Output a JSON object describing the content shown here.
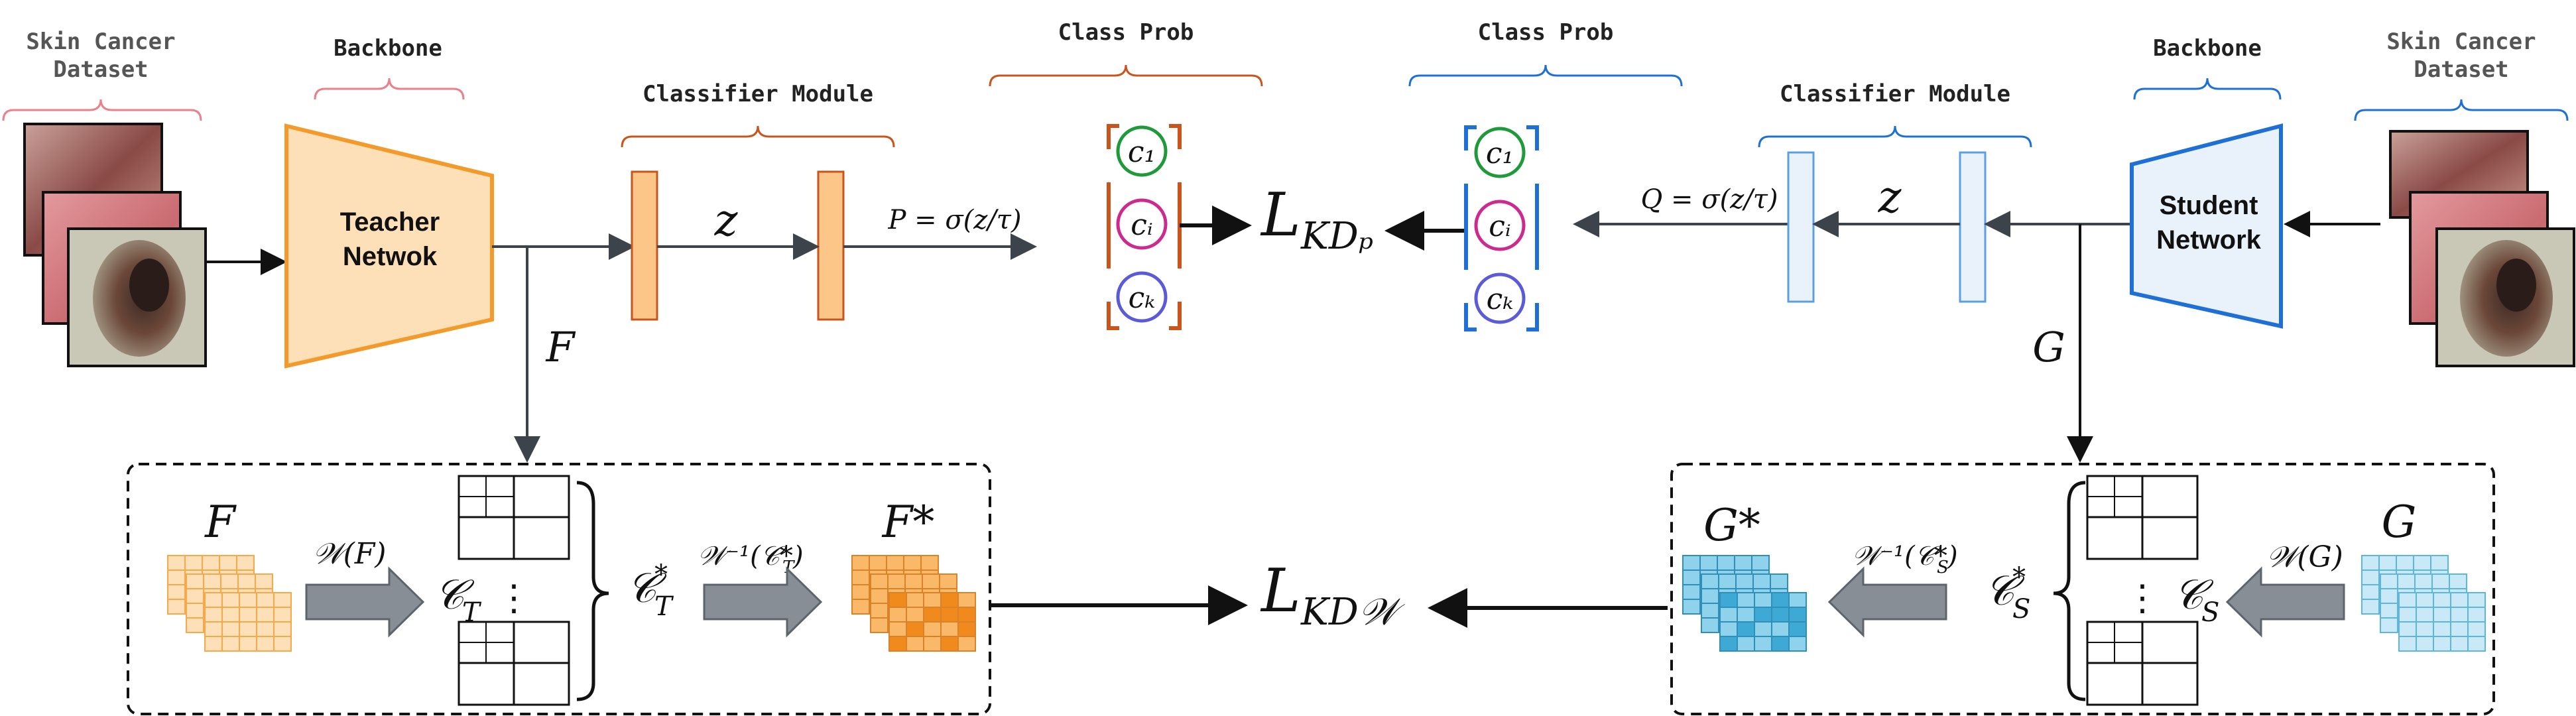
{
  "colors": {
    "teacher_fill": "#fde0b8",
    "teacher_stroke": "#f39a2b",
    "student_fill": "#e9f2fb",
    "student_stroke": "#1e6fd6",
    "teacher_prob": "#c9541c",
    "student_prob": "#1e6fd6",
    "dataset_brace": "#e9808a",
    "grid_orange": "#f6a94a",
    "grid_blue": "#5db6dc",
    "arrow_grey": "#3d434a",
    "block_arrow": "#888e95"
  },
  "teacher": {
    "dataset_label": [
      "Skin Cancer",
      "Dataset"
    ],
    "backbone_label": "Backbone",
    "network_label": [
      "Teacher",
      "Netwok"
    ],
    "classifier_label": "Classifier Module",
    "logit": "z",
    "prob_formula": "P = σ(z/τ)",
    "class_prob_label": "Class Prob",
    "classes": [
      "c₁",
      "cᵢ",
      "cₖ"
    ],
    "feature_name": "F",
    "loss": "L",
    "loss_sub": "KDₚ"
  },
  "student": {
    "dataset_label": [
      "Skin Cancer",
      "Dataset"
    ],
    "backbone_label": "Backbone",
    "network_label": [
      "Student",
      "Network"
    ],
    "classifier_label": "Classifier Module",
    "logit": "z",
    "prob_formula": "Q = σ(z/τ)",
    "class_prob_label": "Class Prob",
    "classes": [
      "c₁",
      "cᵢ",
      "cₖ"
    ],
    "feature_name": "G"
  },
  "bottom_left": {
    "feature": "F",
    "transform": "𝒲(F)",
    "cov": "𝒞",
    "cov_sub": "T",
    "cov_star": "𝒞",
    "cov_star_sub": "T",
    "inverse": "𝒲⁻¹(𝒞*",
    "inverse_sub": "T",
    "output": "F*"
  },
  "bottom_right": {
    "feature": "G",
    "transform": "𝒲(G)",
    "cov": "𝒞",
    "cov_sub": "S",
    "cov_star": "𝒞",
    "cov_star_sub": "S",
    "inverse": "𝒲⁻¹(𝒞*",
    "inverse_sub": "S",
    "output": "G*"
  },
  "loss_w": {
    "main": "L",
    "sub": "KD𝒲"
  },
  "icons": {
    "skin_images": "skin-lesion-image-stack",
    "feature_grid": "feature-map-grid-icon",
    "block_arrow": "block-arrow-icon"
  }
}
